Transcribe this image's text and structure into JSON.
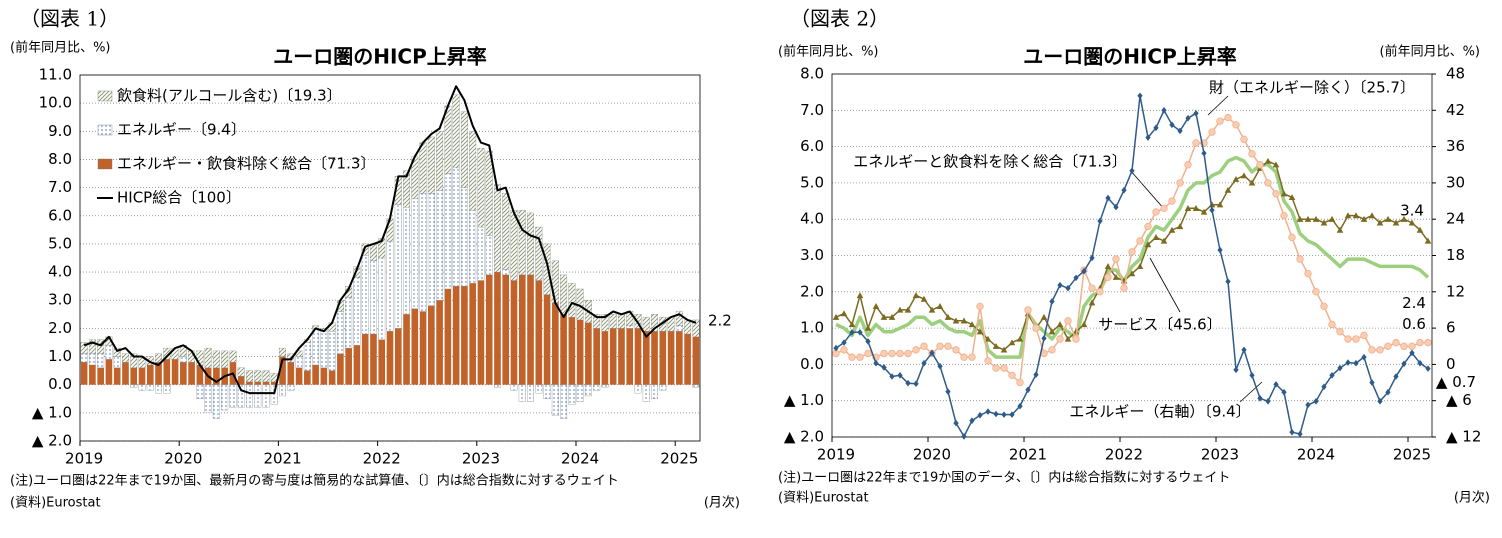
{
  "chart_data": [
    {
      "type": "bar",
      "stacked": true,
      "panel": "（図表 1）",
      "title": "ユーロ圏のHICP上昇率",
      "ylabel": "(前年同月比、%)",
      "xlabel": "(月次)",
      "note": "(注)ユーロ圏は22年まで19か国、最新月の寄与度は簡易的な試算値、〔〕内は総合指数に対するウェイト",
      "source": "(資料)Eurostat",
      "grid": true,
      "legend": "upper left",
      "ylim": [
        -2,
        11
      ],
      "yticks": [
        {
          "value": 11,
          "label": "11.0"
        },
        {
          "value": 10,
          "label": "10.0"
        },
        {
          "value": 9,
          "label": "9.0"
        },
        {
          "value": 8,
          "label": "8.0"
        },
        {
          "value": 7,
          "label": "7.0"
        },
        {
          "value": 6,
          "label": "6.0"
        },
        {
          "value": 5,
          "label": "5.0"
        },
        {
          "value": 4,
          "label": "4.0"
        },
        {
          "value": 3,
          "label": "3.0"
        },
        {
          "value": 2,
          "label": "2.0"
        },
        {
          "value": 1,
          "label": "1.0"
        },
        {
          "value": 0,
          "label": "0.0"
        },
        {
          "value": -1,
          "label": "▲ 1.0"
        },
        {
          "value": -2,
          "label": "▲ 2.0"
        }
      ],
      "categories": [
        "2019",
        null,
        null,
        null,
        null,
        null,
        null,
        null,
        null,
        null,
        null,
        null,
        "2020",
        null,
        null,
        null,
        null,
        null,
        null,
        null,
        null,
        null,
        null,
        null,
        "2021",
        null,
        null,
        null,
        null,
        null,
        null,
        null,
        null,
        null,
        null,
        null,
        "2022",
        null,
        null,
        null,
        null,
        null,
        null,
        null,
        null,
        null,
        null,
        null,
        "2023",
        null,
        null,
        null,
        null,
        null,
        null,
        null,
        null,
        null,
        null,
        null,
        "2024",
        null,
        null,
        null,
        null,
        null,
        null,
        null,
        null,
        null,
        null,
        null,
        "2025",
        null,
        null
      ],
      "series": [
        {
          "name": "飲食料(アルコール含む)〔19.3〕",
          "type": "bar",
          "pattern": "hatch",
          "color": "#8f9c78",
          "values": [
            0.4,
            0.5,
            0.5,
            0.3,
            0.3,
            0.3,
            0.5,
            0.4,
            0.3,
            0.3,
            0.4,
            0.4,
            0.4,
            0.4,
            0.5,
            0.7,
            0.6,
            0.6,
            0.4,
            0.3,
            0.4,
            0.4,
            0.4,
            0.3,
            0.3,
            0.3,
            0.2,
            0.1,
            0.1,
            0.1,
            0.3,
            0.4,
            0.4,
            0.4,
            0.4,
            0.6,
            0.7,
            0.8,
            1.0,
            1.3,
            1.5,
            1.8,
            2.0,
            2.1,
            2.4,
            2.6,
            2.7,
            2.8,
            2.8,
            3.0,
            3.1,
            2.7,
            2.5,
            2.3,
            2.2,
            1.9,
            1.8,
            1.5,
            1.4,
            1.2,
            1.1,
            0.8,
            0.5,
            0.6,
            0.5,
            0.5,
            0.5,
            0.5,
            0.5,
            0.6,
            0.5,
            0.5,
            0.5,
            0.5,
            0.6
          ]
        },
        {
          "name": "エネルギー〔9.4〕",
          "type": "bar",
          "pattern": "dots",
          "color": "#7f9ccc",
          "values": [
            0.3,
            0.4,
            0.5,
            0.5,
            0.4,
            0.0,
            -0.1,
            -0.2,
            -0.2,
            -0.3,
            -0.3,
            0.0,
            0.2,
            0.0,
            -0.5,
            -1.0,
            -1.2,
            -0.9,
            -0.8,
            -0.8,
            -0.8,
            -0.8,
            -0.8,
            -0.7,
            -0.4,
            -0.2,
            0.4,
            1.0,
            1.3,
            1.3,
            1.4,
            1.5,
            1.8,
            2.4,
            2.8,
            2.6,
            2.9,
            3.2,
            4.4,
            3.8,
            3.9,
            4.2,
            4.0,
            3.9,
            4.1,
            4.2,
            3.5,
            2.6,
            1.9,
            1.4,
            -0.1,
            0.2,
            -0.2,
            -0.6,
            -0.6,
            -0.3,
            -0.5,
            -1.1,
            -1.2,
            -0.7,
            -0.6,
            -0.4,
            -0.2,
            -0.1,
            0.0,
            0.0,
            0.1,
            -0.3,
            -0.6,
            -0.5,
            -0.2,
            0.0,
            0.2,
            0.0,
            -0.1
          ]
        },
        {
          "name": "エネルギー・飲食料除く総合〔71.3〕",
          "type": "bar",
          "pattern": "solid",
          "color": "#c0622a",
          "values": [
            0.8,
            0.7,
            0.6,
            0.9,
            0.6,
            0.8,
            0.6,
            0.6,
            0.7,
            0.8,
            0.9,
            0.9,
            0.8,
            0.8,
            0.7,
            0.6,
            0.6,
            0.6,
            0.8,
            0.3,
            0.1,
            0.1,
            0.1,
            0.1,
            1.0,
            0.8,
            0.6,
            0.5,
            0.7,
            0.6,
            0.5,
            1.1,
            1.3,
            1.4,
            1.8,
            1.8,
            1.6,
            1.9,
            2.0,
            2.5,
            2.7,
            2.6,
            2.8,
            3.0,
            3.4,
            3.5,
            3.5,
            3.6,
            3.7,
            3.9,
            4.0,
            3.9,
            3.7,
            3.9,
            3.9,
            3.7,
            3.2,
            2.9,
            2.5,
            2.4,
            2.3,
            2.2,
            2.0,
            1.9,
            2.0,
            2.0,
            2.0,
            2.0,
            1.9,
            1.9,
            1.9,
            1.9,
            1.9,
            1.8,
            1.7
          ]
        },
        {
          "name": "HICP総合〔100〕",
          "type": "line",
          "color": "#000000",
          "values": [
            1.4,
            1.5,
            1.4,
            1.7,
            1.2,
            1.3,
            1.0,
            1.0,
            0.8,
            0.7,
            1.0,
            1.3,
            1.4,
            1.2,
            0.7,
            0.3,
            0.1,
            0.3,
            0.4,
            -0.2,
            -0.3,
            -0.3,
            -0.3,
            -0.3,
            0.9,
            0.9,
            1.3,
            1.6,
            2.0,
            1.9,
            2.2,
            3.0,
            3.4,
            4.1,
            4.9,
            5.0,
            5.1,
            5.9,
            7.4,
            7.4,
            8.1,
            8.6,
            8.9,
            9.1,
            9.9,
            10.6,
            10.1,
            9.2,
            8.6,
            8.5,
            6.9,
            7.0,
            6.1,
            5.5,
            5.3,
            5.2,
            4.3,
            2.9,
            2.4,
            2.9,
            2.8,
            2.6,
            2.4,
            2.4,
            2.6,
            2.5,
            2.6,
            2.2,
            1.7,
            2.0,
            2.2,
            2.4,
            2.5,
            2.3,
            2.2
          ]
        }
      ]
    },
    {
      "type": "line",
      "panel": "（図表 2）",
      "title": "ユーロ圏のHICP上昇率",
      "ylabel": "(前年同月比、%)",
      "y2label": "(前年同月比、%)",
      "xlabel": "(月次)",
      "note": "(注)ユーロ圏は22年まで19か国のデータ、〔〕内は総合指数に対するウェイト",
      "source": "(資料)Eurostat",
      "grid": true,
      "ylim": [
        -2,
        8
      ],
      "yticks": [
        {
          "value": 8,
          "label": "8.0"
        },
        {
          "value": 7,
          "label": "7.0"
        },
        {
          "value": 6,
          "label": "6.0"
        },
        {
          "value": 5,
          "label": "5.0"
        },
        {
          "value": 4,
          "label": "4.0"
        },
        {
          "value": 3,
          "label": "3.0"
        },
        {
          "value": 2,
          "label": "2.0"
        },
        {
          "value": 1,
          "label": "1.0"
        },
        {
          "value": 0,
          "label": "0.0"
        },
        {
          "value": -1,
          "label": "▲ 1.0"
        },
        {
          "value": -2,
          "label": "▲ 2.0"
        }
      ],
      "y2lim": [
        -12,
        48
      ],
      "y2ticks": [
        48,
        42,
        36,
        30,
        24,
        18,
        12,
        6,
        0,
        {
          "value": -6,
          "label": "▲ 6"
        },
        {
          "value": -12,
          "label": "▲ 12"
        }
      ],
      "categories": [
        "2019",
        null,
        null,
        null,
        null,
        null,
        null,
        null,
        null,
        null,
        null,
        null,
        "2020",
        null,
        null,
        null,
        null,
        null,
        null,
        null,
        null,
        null,
        null,
        null,
        "2021",
        null,
        null,
        null,
        null,
        null,
        null,
        null,
        null,
        null,
        null,
        null,
        "2022",
        null,
        null,
        null,
        null,
        null,
        null,
        null,
        null,
        null,
        null,
        null,
        "2023",
        null,
        null,
        null,
        null,
        null,
        null,
        null,
        null,
        null,
        null,
        null,
        "2024",
        null,
        null,
        null,
        null,
        null,
        null,
        null,
        null,
        null,
        null,
        null,
        "2025",
        null,
        null
      ],
      "series": [
        {
          "name": "エネルギーと飲食料を除く総合〔71.3〕",
          "color": "#9ccf7e",
          "width": 3.5,
          "marker": "none",
          "values": [
            1.1,
            1.0,
            0.8,
            1.3,
            0.8,
            1.1,
            0.9,
            0.9,
            1.0,
            1.1,
            1.3,
            1.3,
            1.1,
            1.2,
            1.0,
            0.9,
            0.9,
            0.8,
            1.2,
            0.4,
            0.2,
            0.2,
            0.2,
            0.2,
            1.4,
            1.1,
            0.9,
            0.7,
            1.0,
            0.9,
            0.7,
            1.6,
            1.9,
            2.0,
            2.6,
            2.6,
            2.3,
            2.7,
            2.9,
            3.5,
            3.8,
            3.7,
            4.0,
            4.3,
            4.8,
            5.0,
            5.0,
            5.2,
            5.3,
            5.6,
            5.7,
            5.6,
            5.3,
            5.5,
            5.5,
            5.3,
            4.5,
            4.2,
            3.6,
            3.4,
            3.3,
            3.1,
            2.9,
            2.7,
            2.9,
            2.9,
            2.9,
            2.8,
            2.7,
            2.7,
            2.7,
            2.7,
            2.7,
            2.6,
            2.4
          ]
        },
        {
          "name": "サービス〔45.6〕",
          "color": "#7b6a1f",
          "width": 1.5,
          "marker": "triangle",
          "values": [
            1.3,
            1.4,
            1.1,
            1.9,
            1.0,
            1.6,
            1.3,
            1.3,
            1.5,
            1.5,
            1.9,
            1.8,
            1.5,
            1.6,
            1.3,
            1.2,
            1.2,
            1.1,
            0.9,
            0.7,
            0.5,
            0.4,
            0.6,
            0.7,
            1.4,
            1.0,
            1.3,
            0.9,
            1.1,
            0.7,
            0.9,
            1.1,
            1.7,
            2.1,
            2.7,
            2.4,
            2.3,
            2.5,
            2.7,
            3.3,
            3.5,
            3.4,
            3.7,
            3.8,
            4.3,
            4.3,
            4.2,
            4.4,
            4.4,
            4.8,
            5.1,
            5.2,
            5.0,
            5.4,
            5.6,
            5.5,
            4.7,
            4.6,
            4.0,
            4.0,
            4.0,
            3.9,
            4.0,
            3.7,
            4.1,
            4.1,
            4.0,
            4.1,
            3.9,
            4.0,
            3.9,
            4.0,
            3.9,
            3.7,
            3.4
          ]
        },
        {
          "name": "財（エネルギー除く）〔25.7〕",
          "color": "#f2b08c",
          "width": 1.5,
          "marker": "circle",
          "values": [
            0.3,
            0.4,
            0.2,
            0.2,
            0.3,
            0.2,
            0.3,
            0.3,
            0.3,
            0.3,
            0.4,
            0.5,
            0.3,
            0.5,
            0.5,
            0.4,
            0.2,
            0.2,
            1.6,
            0.1,
            -0.1,
            -0.1,
            -0.3,
            -0.5,
            1.5,
            1.0,
            0.3,
            0.4,
            0.7,
            1.2,
            0.7,
            2.6,
            2.1,
            2.0,
            2.4,
            2.9,
            2.1,
            3.1,
            3.4,
            3.8,
            4.2,
            4.3,
            4.5,
            5.0,
            5.5,
            6.1,
            6.1,
            6.4,
            6.7,
            6.8,
            6.6,
            6.2,
            5.8,
            5.5,
            5.0,
            4.7,
            4.1,
            3.5,
            2.9,
            2.5,
            2.0,
            1.6,
            1.1,
            0.9,
            0.7,
            0.7,
            0.8,
            0.4,
            0.4,
            0.5,
            0.6,
            0.5,
            0.5,
            0.6,
            0.6
          ]
        },
        {
          "name": "エネルギー（右軸）〔9.4〕",
          "color": "#2f5b8a",
          "width": 1.5,
          "marker": "diamond",
          "axis": "y2",
          "values": [
            2.7,
            3.6,
            5.3,
            5.3,
            3.8,
            0.2,
            -0.5,
            -2.0,
            -1.8,
            -3.1,
            -3.2,
            0.2,
            1.9,
            -0.3,
            -4.5,
            -9.7,
            -11.9,
            -9.3,
            -8.4,
            -7.8,
            -8.2,
            -8.3,
            -8.3,
            -6.9,
            -4.2,
            -1.7,
            4.3,
            10.4,
            13.1,
            12.6,
            14.3,
            15.4,
            17.6,
            23.7,
            27.5,
            26.0,
            28.8,
            32.0,
            44.4,
            37.5,
            39.1,
            42.0,
            39.6,
            38.6,
            40.7,
            41.5,
            34.9,
            25.5,
            18.9,
            13.7,
            -0.9,
            2.4,
            -1.8,
            -5.6,
            -6.1,
            -3.3,
            -4.6,
            -11.2,
            -11.5,
            -6.7,
            -6.1,
            -3.7,
            -1.8,
            -0.6,
            0.3,
            0.2,
            1.2,
            -3.0,
            -6.1,
            -4.6,
            -2.0,
            0.1,
            1.9,
            0.2,
            -0.7
          ],
          "value_labels": [
            null,
            null,
            null,
            null,
            null,
            null,
            null,
            null,
            null,
            null,
            null,
            null,
            null,
            null,
            null,
            null,
            null,
            null,
            null,
            null,
            null,
            null,
            null,
            null,
            null,
            null,
            null,
            null,
            null,
            null,
            null,
            null,
            null,
            null,
            null,
            null,
            null,
            null,
            null,
            null,
            null,
            null,
            null,
            null,
            null,
            null,
            null,
            null,
            null,
            null,
            null,
            null,
            null,
            null,
            null,
            null,
            null,
            null,
            null,
            null,
            null,
            null,
            null,
            null,
            null,
            null,
            null,
            null,
            null,
            null,
            null,
            null,
            null,
            null,
            "▲ 0.7"
          ]
        }
      ]
    }
  ]
}
